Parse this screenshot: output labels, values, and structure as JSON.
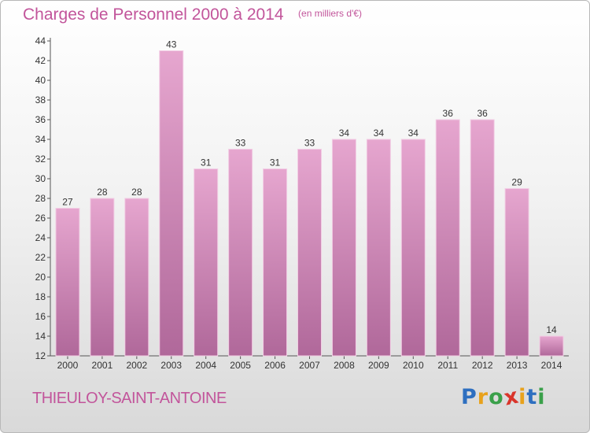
{
  "chart_data": {
    "type": "bar",
    "title": "Charges de Personnel 2000 à 2014",
    "subtitle": "(en milliers d'€)",
    "categories": [
      "2000",
      "2001",
      "2002",
      "2003",
      "2004",
      "2005",
      "2006",
      "2007",
      "2008",
      "2009",
      "2010",
      "2011",
      "2012",
      "2013",
      "2014"
    ],
    "values": [
      27,
      28,
      28,
      43,
      31,
      33,
      31,
      33,
      34,
      34,
      34,
      36,
      36,
      29,
      14
    ],
    "ylim": [
      12,
      44
    ],
    "yticks": [
      12,
      14,
      16,
      18,
      20,
      22,
      24,
      26,
      28,
      30,
      32,
      34,
      36,
      38,
      40,
      42,
      44
    ],
    "grid": false,
    "bar_color_top": "#e6a6cf",
    "bar_color_bottom": "#b0689a"
  },
  "footer": {
    "place": "THIEULOY-SAINT-ANTOINE",
    "logo_letters": [
      {
        "char": "P",
        "color": "#2e6fc0"
      },
      {
        "char": "r",
        "color": "#e8a21c"
      },
      {
        "char": "o",
        "color": "#3aa04a"
      },
      {
        "char": "x",
        "color": "#d9352b"
      },
      {
        "char": "i",
        "color": "#e8a21c"
      },
      {
        "char": "t",
        "color": "#2e6fc0"
      },
      {
        "char": "i",
        "color": "#3aa04a"
      }
    ]
  }
}
